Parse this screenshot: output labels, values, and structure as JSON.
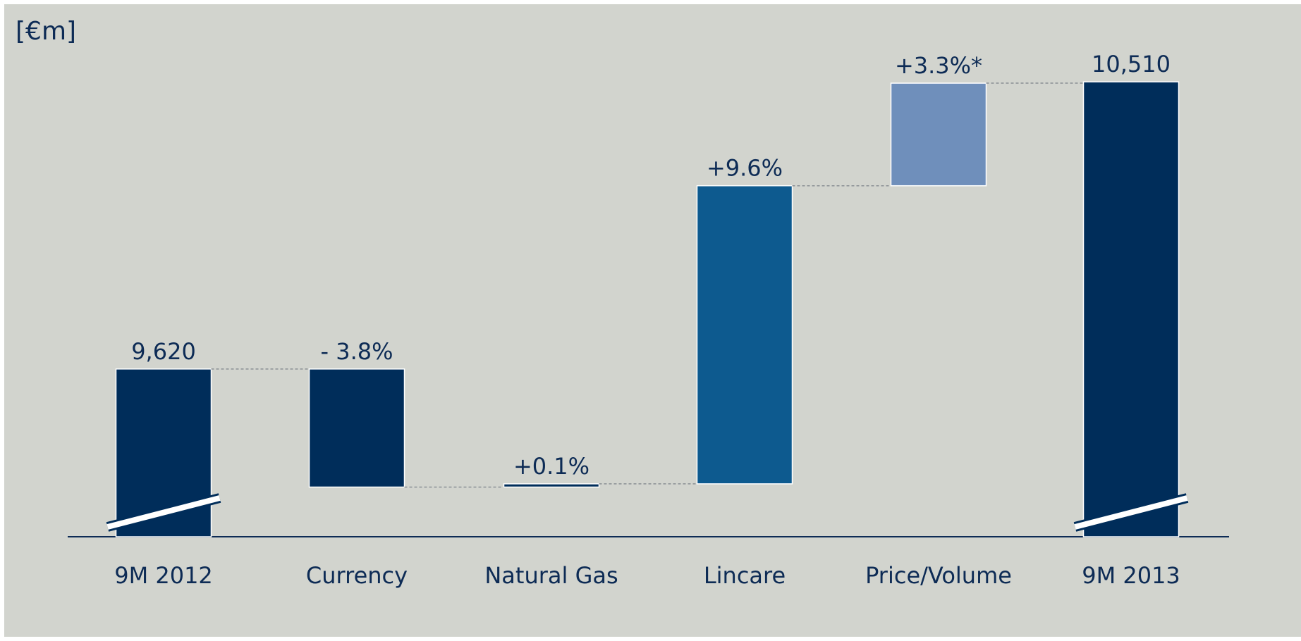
{
  "chart_data": {
    "type": "waterfall",
    "unit_label": "[€m]",
    "categories": [
      "9M 2012",
      "Currency",
      "Natural Gas",
      "Lincare",
      "Price/Volume",
      "9M 2013"
    ],
    "values": [
      9620,
      -366,
      10,
      924,
      318,
      10510
    ],
    "value_labels": [
      "9,620",
      "- 3.8%",
      "+0.1%",
      "+9.6%",
      "+3.3%*",
      "10,510"
    ],
    "colors": [
      "#002d5a",
      "#002d5a",
      "#002d5a",
      "#0d5a8f",
      "#6f8fbb",
      "#002d5a"
    ],
    "ylim": [
      9100,
      10600
    ]
  }
}
